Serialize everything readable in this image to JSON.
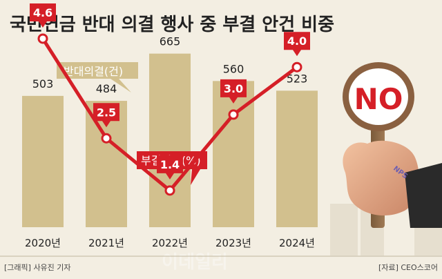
{
  "chart_data": {
    "type": "bar",
    "title": "국민연금 반대 의결 행사 중 부결 안건 비중",
    "categories": [
      "2020년",
      "2021년",
      "2022년",
      "2023년",
      "2024년"
    ],
    "series": [
      {
        "name": "반대의결(건)",
        "type": "bar",
        "values": [
          503,
          484,
          665,
          560,
          523
        ],
        "labels": [
          "503",
          "484",
          "665",
          "560",
          "523"
        ]
      },
      {
        "name": "부결비율(%)",
        "type": "line",
        "values": [
          4.6,
          2.5,
          1.4,
          3.0,
          4.0
        ],
        "labels": [
          "4.6",
          "2.5",
          "1.4",
          "3.0",
          "4.0"
        ]
      }
    ],
    "colors": {
      "bar": "#d2c08e",
      "line": "#d51f27",
      "background": "#f3eee2",
      "title": "#222222"
    },
    "grid": false
  },
  "sign": {
    "text": "NO",
    "badge": "NPS"
  },
  "credit": "[그래픽] 사유진 기자",
  "source": "[자료] CEO스코어",
  "watermark": "이데일리"
}
